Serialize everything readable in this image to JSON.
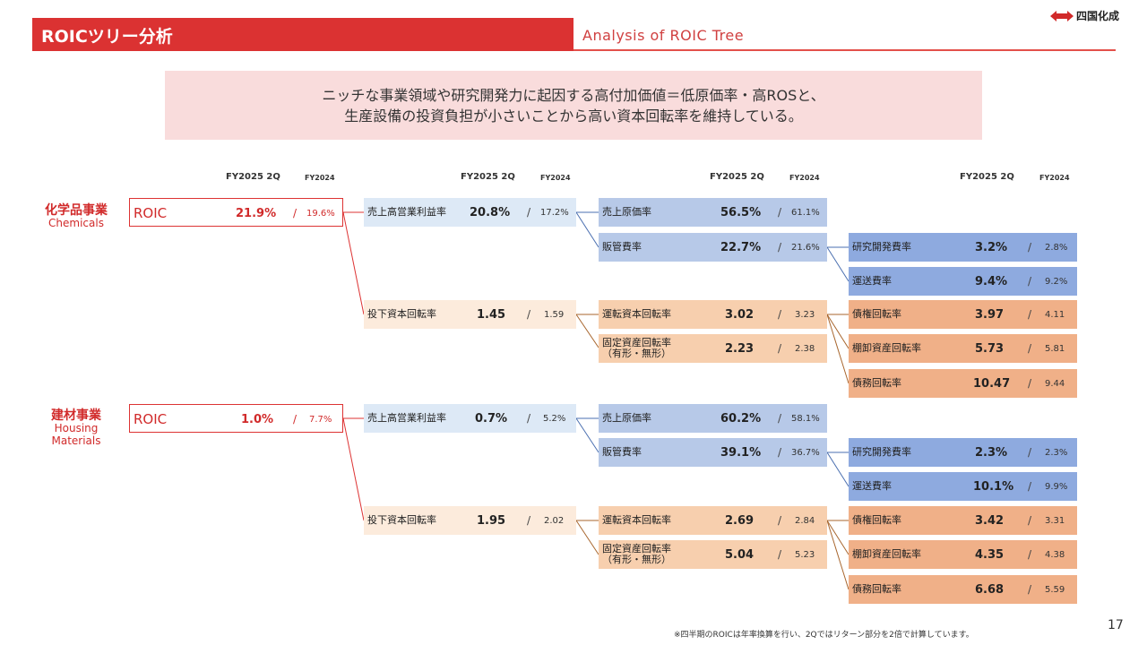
{
  "header": {
    "title": "ROICツリー分析",
    "subtitle": "Analysis of ROIC Tree",
    "logo_text": "四国化成"
  },
  "summary": {
    "line1": "ニッチな事業領域や研究開発力に起因する高付加価値＝低原価率・高ROSと、",
    "line2": "生産設備の投資負担が小さいことから高い資本回転率を維持している。"
  },
  "columns": {
    "current": "FY2025 2Q",
    "prior": "FY2024"
  },
  "segments": [
    {
      "name_jp": "化学品事業",
      "name_en": "Chemicals",
      "roic": {
        "label": "ROIC",
        "cur": "21.9%",
        "prev": "19.6%"
      },
      "ros": {
        "label": "売上高営業利益率",
        "cur": "20.8%",
        "prev": "17.2%"
      },
      "turnover": {
        "label": "投下資本回転率",
        "cur": "1.45",
        "prev": "1.59"
      },
      "cogs": {
        "label": "売上原価率",
        "cur": "56.5%",
        "prev": "61.1%"
      },
      "sga": {
        "label": "販管費率",
        "cur": "22.7%",
        "prev": "21.6%"
      },
      "wc": {
        "label": "運転資本回転率",
        "cur": "3.02",
        "prev": "3.23"
      },
      "fixed": {
        "label1": "固定資産回転率",
        "label2": "（有形・無形）",
        "cur": "2.23",
        "prev": "2.38"
      },
      "rd": {
        "label": "研究開発費率",
        "cur": "3.2%",
        "prev": "2.8%"
      },
      "freight": {
        "label": "運送費率",
        "cur": "9.4%",
        "prev": "9.2%"
      },
      "receivable": {
        "label": "債権回転率",
        "cur": "3.97",
        "prev": "4.11"
      },
      "inventory": {
        "label": "棚卸資産回転率",
        "cur": "5.73",
        "prev": "5.81"
      },
      "payable": {
        "label": "債務回転率",
        "cur": "10.47",
        "prev": "9.44"
      }
    },
    {
      "name_jp": "建材事業",
      "name_en1": "Housing",
      "name_en2": "Materials",
      "roic": {
        "label": "ROIC",
        "cur": "1.0%",
        "prev": "7.7%"
      },
      "ros": {
        "label": "売上高営業利益率",
        "cur": "0.7%",
        "prev": "5.2%"
      },
      "turnover": {
        "label": "投下資本回転率",
        "cur": "1.95",
        "prev": "2.02"
      },
      "cogs": {
        "label": "売上原価率",
        "cur": "60.2%",
        "prev": "58.1%"
      },
      "sga": {
        "label": "販管費率",
        "cur": "39.1%",
        "prev": "36.7%"
      },
      "wc": {
        "label": "運転資本回転率",
        "cur": "2.69",
        "prev": "2.84"
      },
      "fixed": {
        "label1": "固定資産回転率",
        "label2": "（有形・無形）",
        "cur": "5.04",
        "prev": "5.23"
      },
      "rd": {
        "label": "研究開発費率",
        "cur": "2.3%",
        "prev": "2.3%"
      },
      "freight": {
        "label": "運送費率",
        "cur": "10.1%",
        "prev": "9.9%"
      },
      "receivable": {
        "label": "債権回転率",
        "cur": "3.42",
        "prev": "3.31"
      },
      "inventory": {
        "label": "棚卸資産回転率",
        "cur": "4.35",
        "prev": "4.38"
      },
      "payable": {
        "label": "債務回転率",
        "cur": "6.68",
        "prev": "5.59"
      }
    }
  ],
  "slash": "/",
  "footnote": "※四半期のROICは年率換算を行い、2Qではリターン部分を2倍で計算しています。",
  "page_number": "17",
  "colors": {
    "brand_red": "#db3232",
    "summary_bg": "#f9dcdc",
    "blue_light": "#dde9f6",
    "blue_mid": "#b7c9e8",
    "blue_dark": "#8eaadf",
    "orange_light": "#fcebdc",
    "orange_mid": "#f7cfae",
    "orange_dark": "#f0b088"
  }
}
